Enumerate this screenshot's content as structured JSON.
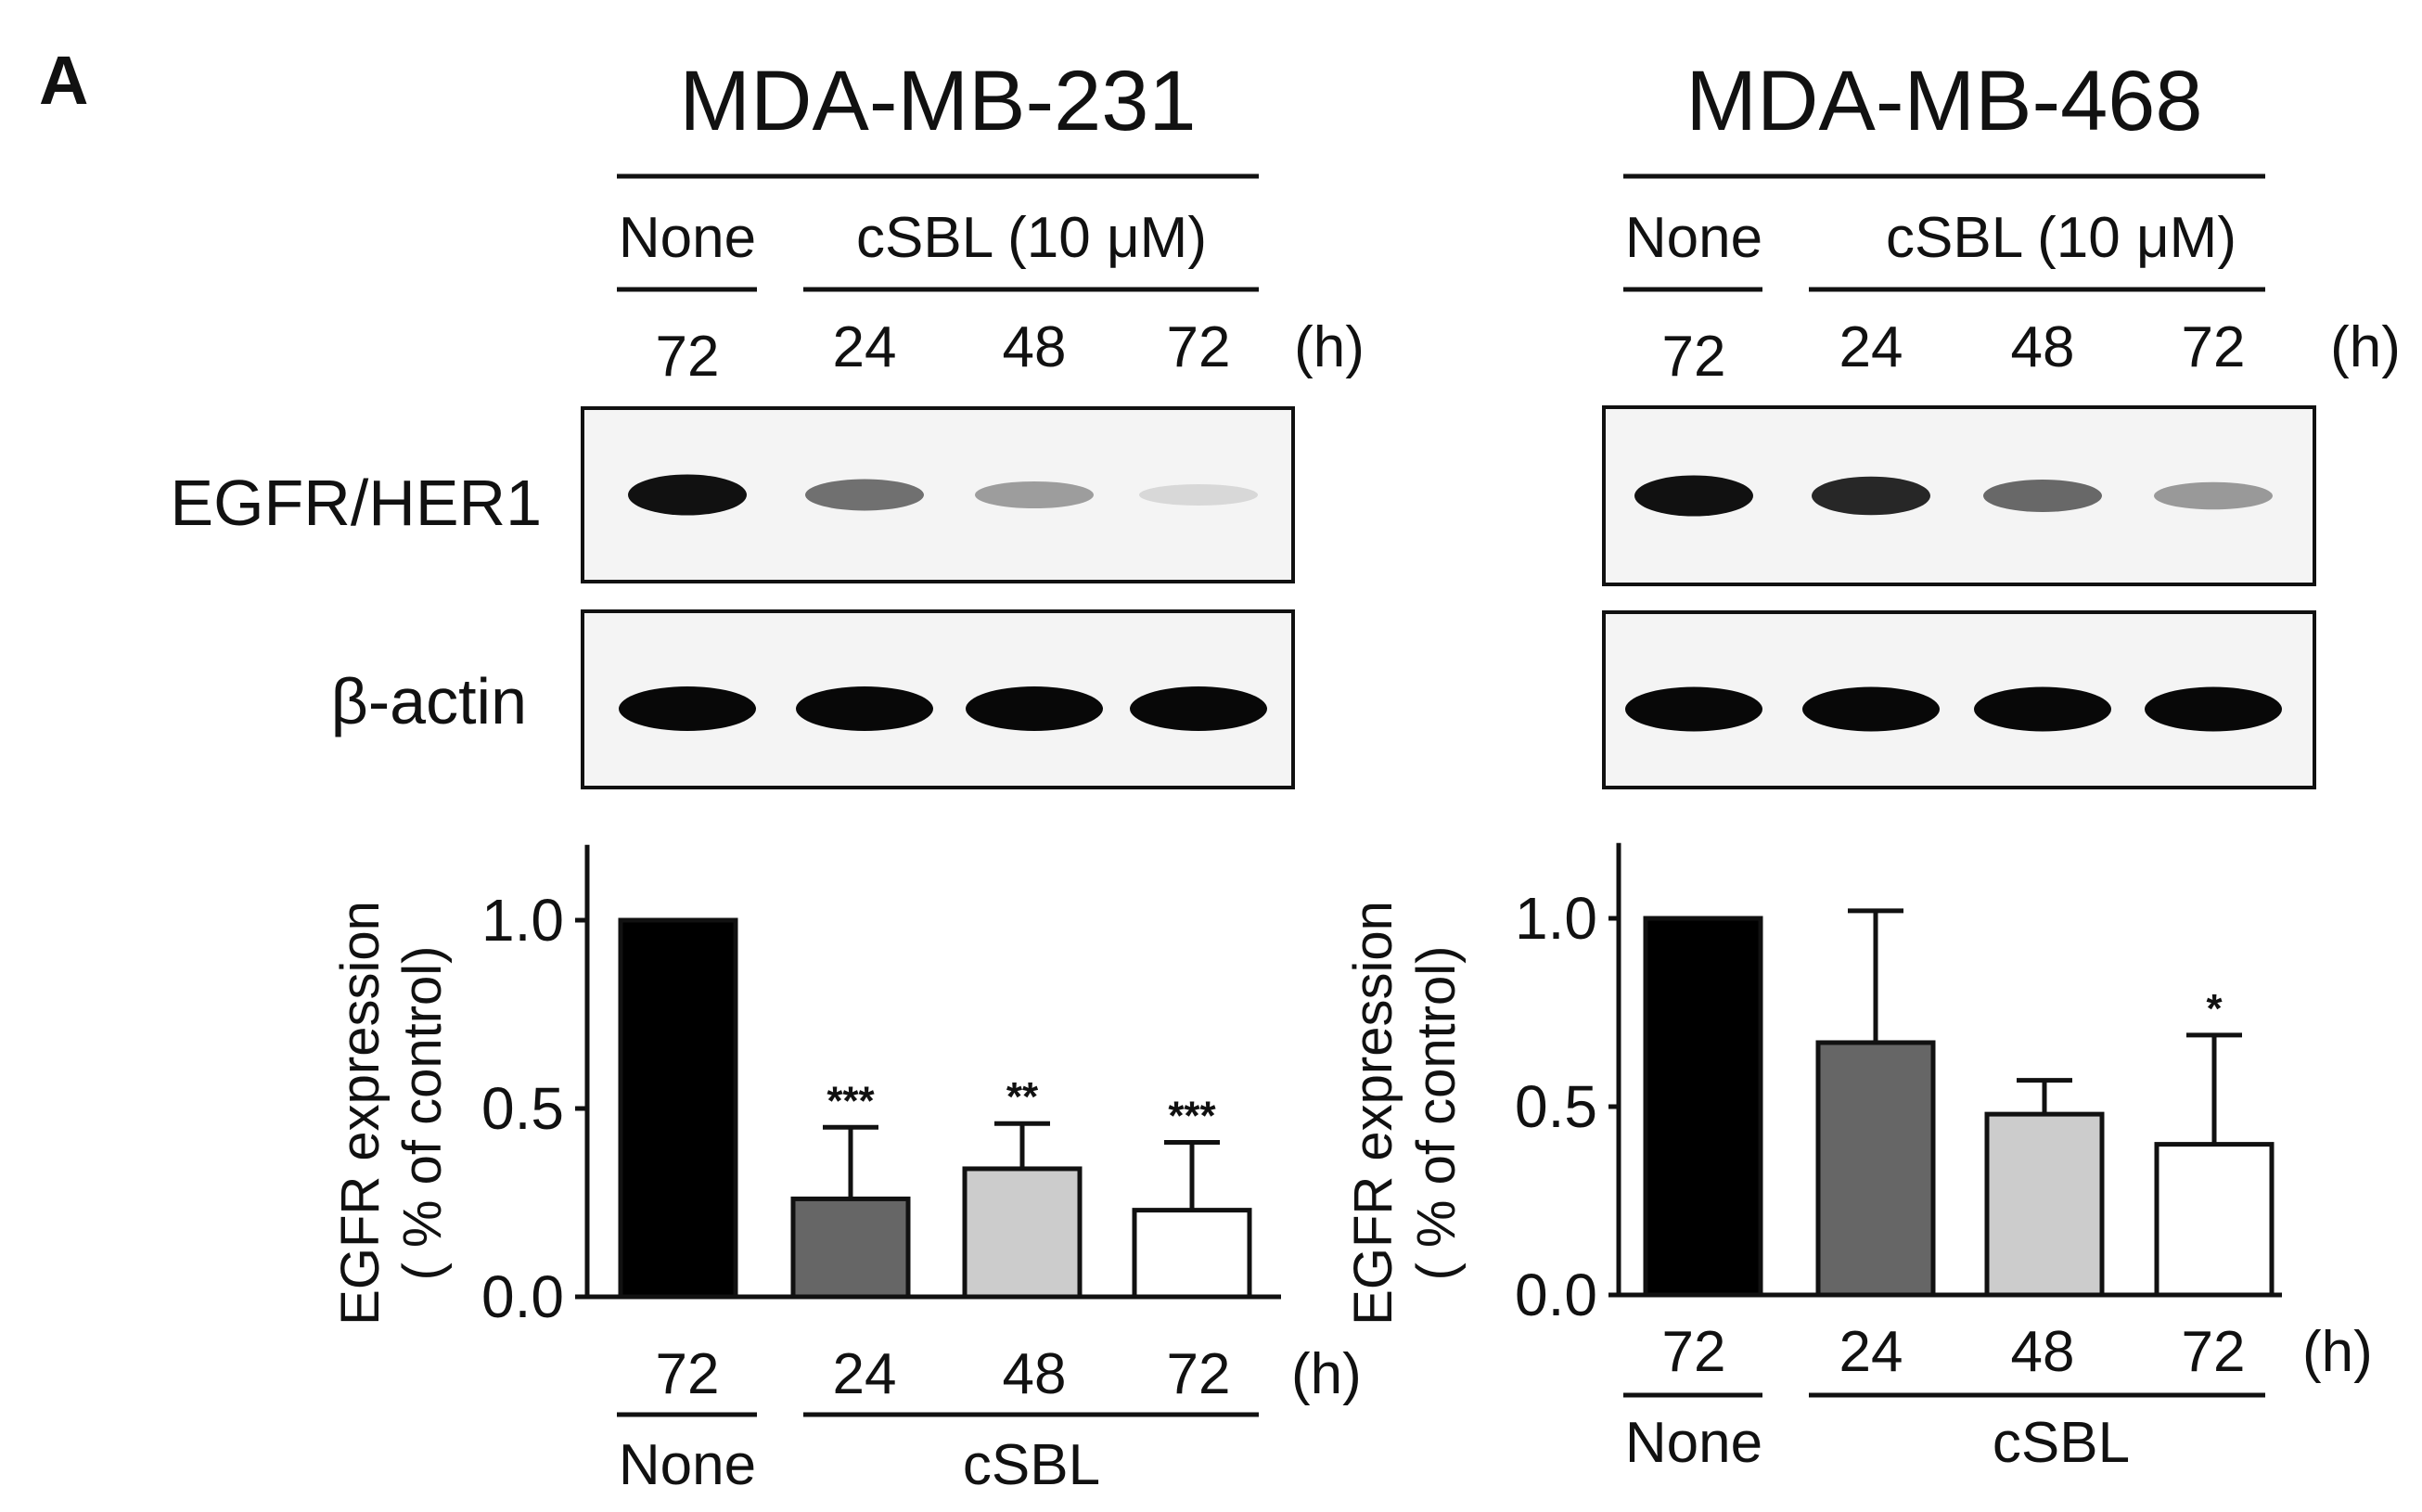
{
  "figure": {
    "panel_letter": "A",
    "time_unit": "(h)",
    "row_labels": [
      "EGFR/HER1",
      "β-actin"
    ]
  },
  "panels": [
    {
      "cell_line": "MDA-MB-231",
      "control_group": "None",
      "treatment_group": "cSBL (10 μM)",
      "lane_times": [
        "72",
        "24",
        "48",
        "72"
      ],
      "egfr_band_intensity": [
        1.0,
        0.58,
        0.38,
        0.12
      ],
      "actin_band_intensity": [
        1.0,
        1.0,
        1.0,
        1.0
      ]
    },
    {
      "cell_line": "MDA-MB-468",
      "control_group": "None",
      "treatment_group": "cSBL (10 μM)",
      "lane_times": [
        "72",
        "24",
        "48",
        "72"
      ],
      "egfr_band_intensity": [
        1.0,
        0.9,
        0.62,
        0.4
      ],
      "actin_band_intensity": [
        1.0,
        1.0,
        1.0,
        1.0
      ]
    }
  ],
  "chart_data": [
    {
      "type": "bar",
      "title": "MDA-MB-231",
      "ylabel_lines": [
        "EGFR expression",
        "( % of control)"
      ],
      "categories": [
        "72",
        "24",
        "48",
        "72"
      ],
      "group_labels": [
        "None",
        "cSBL"
      ],
      "x_unit": "(h)",
      "values": [
        1.0,
        0.26,
        0.34,
        0.23
      ],
      "errors": [
        0.0,
        0.19,
        0.12,
        0.18
      ],
      "significance": [
        "",
        "***",
        "**",
        "***"
      ],
      "bar_colors": [
        "#000000",
        "#666666",
        "#cccccc",
        "#ffffff"
      ],
      "ylim": [
        0,
        1.2
      ],
      "yticks": [
        0.0,
        0.5,
        1.0
      ],
      "ytick_labels": [
        "0.0",
        "0.5",
        "1.0"
      ]
    },
    {
      "type": "bar",
      "title": "MDA-MB-468",
      "ylabel_lines": [
        "EGFR expression",
        "( % of control)"
      ],
      "categories": [
        "72",
        "24",
        "48",
        "72"
      ],
      "group_labels": [
        "None",
        "cSBL"
      ],
      "x_unit": "(h)",
      "values": [
        1.0,
        0.67,
        0.48,
        0.4
      ],
      "errors": [
        0.0,
        0.35,
        0.09,
        0.29
      ],
      "significance": [
        "",
        "",
        "",
        "*"
      ],
      "bar_colors": [
        "#000000",
        "#666666",
        "#cccccc",
        "#ffffff"
      ],
      "ylim": [
        0,
        1.2
      ],
      "yticks": [
        0.0,
        0.5,
        1.0
      ],
      "ytick_labels": [
        "0.0",
        "0.5",
        "1.0"
      ]
    }
  ]
}
